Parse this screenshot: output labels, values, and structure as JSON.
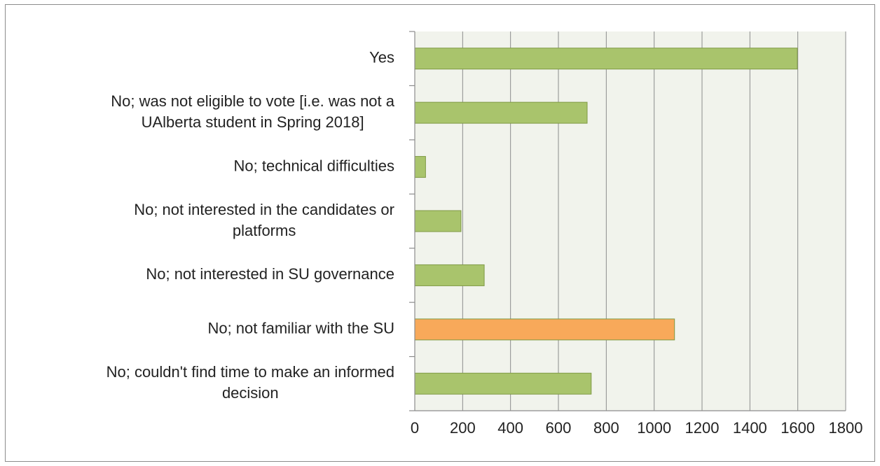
{
  "chart_data": {
    "type": "bar",
    "orientation": "horizontal",
    "categories": [
      [
        "Yes"
      ],
      [
        "No; was not eligible to vote [i.e. was not a",
        "UAlberta student in Spring 2018]"
      ],
      [
        "No; technical difficulties"
      ],
      [
        "No; not interested in the candidates or",
        "platforms"
      ],
      [
        "No; not interested in SU governance"
      ],
      [
        "No; not familiar with the SU"
      ],
      [
        "No; couldn't find time to make an informed",
        "decision"
      ]
    ],
    "values": [
      1598,
      720,
      45,
      193,
      290,
      1085,
      737
    ],
    "bar_colors": [
      "#a9c46c",
      "#a9c46c",
      "#a9c46c",
      "#a9c46c",
      "#a9c46c",
      "#f8a95a",
      "#a9c46c"
    ],
    "xlim": [
      0,
      1800
    ],
    "xticks": [
      "0",
      "200",
      "400",
      "600",
      "800",
      "1000",
      "1200",
      "1400",
      "1600",
      "1800"
    ],
    "grid": true,
    "plot_background": "#f1f3ec",
    "gridline_color": "#8c8c8c",
    "title": "",
    "xlabel": "",
    "ylabel": ""
  }
}
